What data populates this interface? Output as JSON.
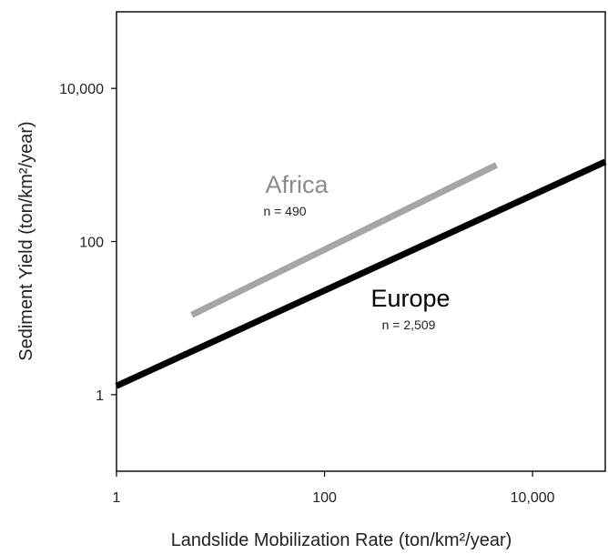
{
  "chart_data": {
    "type": "line",
    "x_scale": "log",
    "y_scale": "log",
    "xlim": [
      1,
      50000
    ],
    "ylim": [
      0.1,
      100000
    ],
    "xlabel": "Landslide Mobilization Rate (ton/km²/year)",
    "ylabel": "Sediment Yield (ton/km²/year)",
    "x_ticks": [
      {
        "value": 1,
        "label": "1"
      },
      {
        "value": 100,
        "label": "100"
      },
      {
        "value": 10000,
        "label": "10,000"
      }
    ],
    "y_ticks": [
      {
        "value": 1,
        "label": "1"
      },
      {
        "value": 100,
        "label": "100"
      },
      {
        "value": 10000,
        "label": "10,000"
      }
    ],
    "grid": false,
    "series": [
      {
        "name": "Africa",
        "n_label": "n = 490",
        "color": "#a6a6a6",
        "points": [
          [
            5.3,
            11
          ],
          [
            4500,
            1000
          ]
        ]
      },
      {
        "name": "Europe",
        "n_label": "n = 2,509",
        "color": "#000000",
        "points": [
          [
            1,
            1.3
          ],
          [
            50000,
            1100
          ]
        ]
      }
    ]
  }
}
